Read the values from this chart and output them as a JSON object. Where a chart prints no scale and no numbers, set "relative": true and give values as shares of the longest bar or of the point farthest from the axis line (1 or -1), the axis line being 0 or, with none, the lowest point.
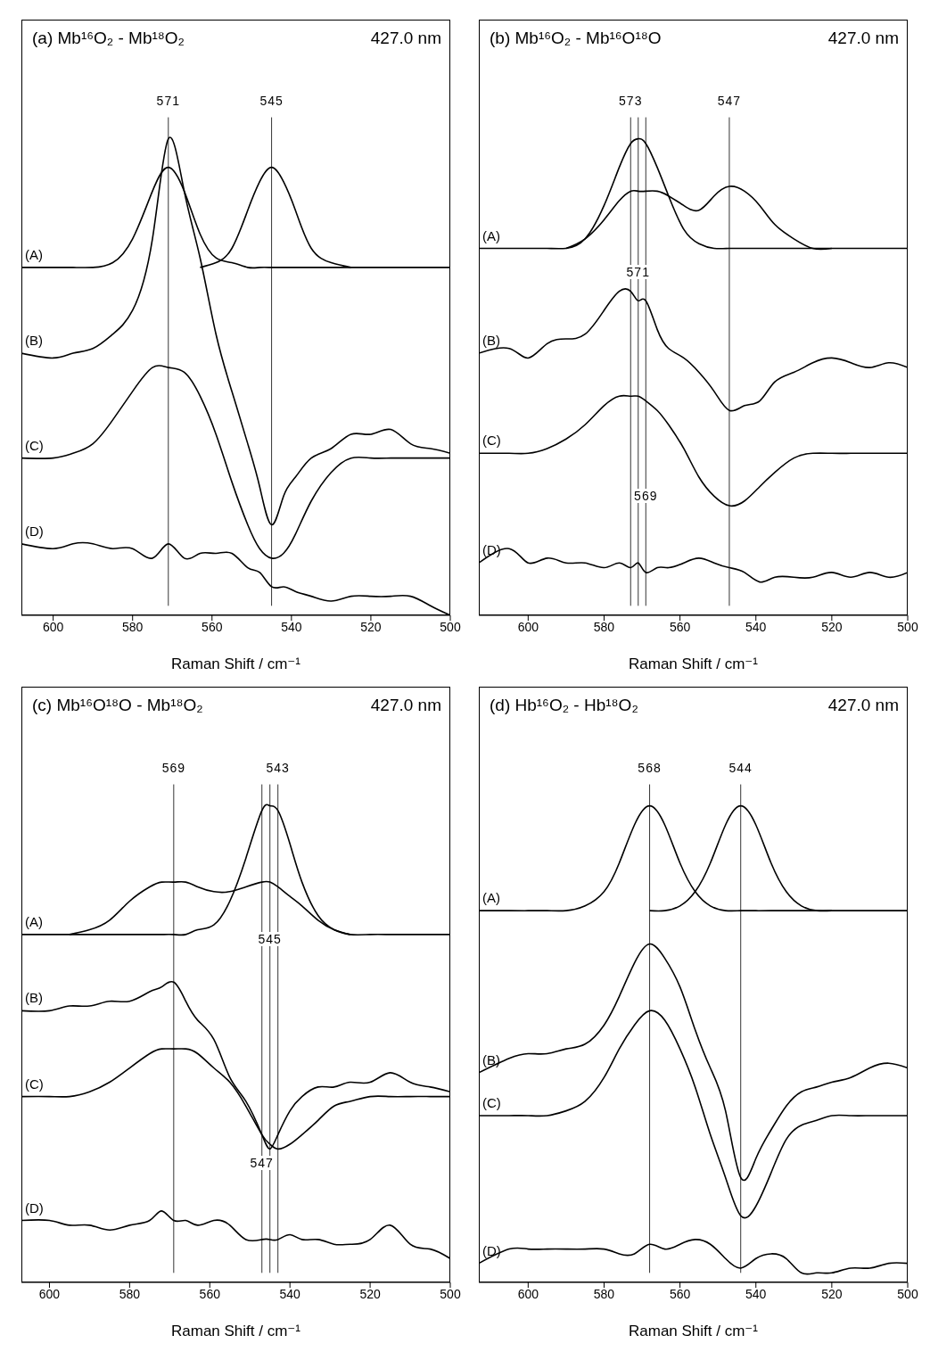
{
  "chart_data": [
    {
      "type": "line",
      "title": "(a) Mb¹⁶O₂ - Mb¹⁸O₂",
      "xlabel": "Raman Shift / cm⁻¹",
      "annotations": [
        "427.0 nm"
      ],
      "relative": true,
      "xlim": [
        608,
        500
      ],
      "xticks": [
        600,
        580,
        560,
        540,
        520,
        500
      ],
      "x": [
        608,
        600,
        595,
        590,
        585,
        580,
        575,
        571,
        567,
        563,
        559,
        555,
        551,
        548,
        545,
        542,
        539,
        535,
        530,
        525,
        520,
        515,
        510,
        505,
        500
      ],
      "ref_lines": [
        {
          "axis": "x",
          "value": 571,
          "label": "571"
        },
        {
          "axis": "x",
          "value": 545,
          "label": "545"
        }
      ],
      "series": [
        {
          "name": "(A)",
          "color": "#000000",
          "values": [
            0.73,
            0.73,
            0.73,
            0.73,
            0.74,
            0.79,
            0.89,
            0.94,
            0.89,
            0.8,
            0.75,
            0.74,
            0.73,
            0.73,
            0.73,
            0.73,
            0.73,
            0.73,
            0.73,
            0.73,
            0.73,
            0.73,
            0.73,
            0.73,
            0.73
          ]
        },
        {
          "color": "#000000",
          "values": [
            null,
            null,
            null,
            null,
            null,
            null,
            null,
            null,
            null,
            0.73,
            0.74,
            0.77,
            0.85,
            0.91,
            0.94,
            0.91,
            0.85,
            0.77,
            0.74,
            0.73,
            null,
            null,
            null,
            null,
            null
          ]
        },
        {
          "name": "(B)",
          "color": "#000000",
          "values": [
            0.55,
            0.54,
            0.55,
            0.56,
            0.59,
            0.64,
            0.79,
            1.0,
            0.89,
            0.75,
            0.59,
            0.47,
            0.36,
            0.27,
            0.19,
            0.25,
            0.29,
            0.33,
            0.35,
            0.38,
            0.38,
            0.39,
            0.36,
            0.35,
            0.34
          ]
        },
        {
          "name": "(C)",
          "color": "#000000",
          "values": [
            0.33,
            0.33,
            0.34,
            0.36,
            0.41,
            0.47,
            0.52,
            0.52,
            0.51,
            0.46,
            0.38,
            0.28,
            0.19,
            0.14,
            0.12,
            0.13,
            0.17,
            0.24,
            0.3,
            0.33,
            0.33,
            0.33,
            0.33,
            0.33,
            0.33
          ]
        },
        {
          "name": "(D)",
          "color": "#000000",
          "values": [
            0.15,
            0.14,
            0.15,
            0.15,
            0.14,
            0.14,
            0.12,
            0.15,
            0.12,
            0.13,
            0.13,
            0.13,
            0.1,
            0.09,
            0.06,
            0.06,
            0.05,
            0.04,
            0.03,
            0.04,
            0.04,
            0.04,
            0.04,
            0.02,
            0.0
          ]
        }
      ]
    },
    {
      "type": "line",
      "title": "(b) Mb¹⁶O₂ - Mb¹⁶O¹⁸O",
      "xlabel": "Raman Shift / cm⁻¹",
      "annotations": [
        "427.0 nm"
      ],
      "relative": true,
      "xlim": [
        613,
        500
      ],
      "xticks": [
        600,
        580,
        560,
        540,
        520,
        500
      ],
      "x": [
        613,
        605,
        600,
        595,
        590,
        585,
        580,
        576,
        573,
        571,
        569,
        566,
        563,
        559,
        555,
        551,
        547,
        543,
        539,
        535,
        530,
        525,
        520,
        515,
        510,
        505,
        500
      ],
      "ref_lines": [
        {
          "axis": "x",
          "value": 573,
          "label": "573"
        },
        {
          "axis": "x",
          "value": 571,
          "label": "571"
        },
        {
          "axis": "x",
          "value": 569,
          "label": "569"
        },
        {
          "axis": "x",
          "value": 547,
          "label": "547"
        }
      ],
      "series": [
        {
          "name": "(A)",
          "color": "#000000",
          "values": [
            0.77,
            0.77,
            0.77,
            0.77,
            0.77,
            0.79,
            0.86,
            0.94,
            0.99,
            1.0,
            0.99,
            0.94,
            0.88,
            0.81,
            0.78,
            0.77,
            0.77,
            0.77,
            0.77,
            0.77,
            0.77,
            0.77,
            0.77,
            0.77,
            0.77,
            0.77,
            0.77
          ]
        },
        {
          "color": "#000000",
          "values": [
            null,
            null,
            null,
            null,
            0.77,
            0.79,
            0.83,
            0.87,
            0.89,
            0.89,
            0.89,
            0.89,
            0.88,
            0.86,
            0.85,
            0.88,
            0.9,
            0.89,
            0.86,
            0.82,
            0.79,
            0.77,
            0.77,
            null,
            null,
            null,
            null
          ]
        },
        {
          "name": "(B)",
          "color": "#000000",
          "values": [
            0.55,
            0.56,
            0.54,
            0.57,
            0.58,
            0.59,
            0.64,
            0.68,
            0.68,
            0.66,
            0.66,
            0.6,
            0.56,
            0.54,
            0.51,
            0.47,
            0.43,
            0.44,
            0.45,
            0.49,
            0.51,
            0.53,
            0.54,
            0.53,
            0.52,
            0.53,
            0.52
          ]
        },
        {
          "name": "(C)",
          "color": "#000000",
          "values": [
            0.34,
            0.34,
            0.34,
            0.35,
            0.37,
            0.4,
            0.44,
            0.46,
            0.46,
            0.46,
            0.45,
            0.43,
            0.4,
            0.35,
            0.29,
            0.25,
            0.23,
            0.24,
            0.27,
            0.3,
            0.33,
            0.34,
            0.34,
            0.34,
            0.34,
            0.34,
            0.34
          ]
        },
        {
          "name": "(D)",
          "color": "#000000",
          "values": [
            0.11,
            0.14,
            0.11,
            0.12,
            0.11,
            0.11,
            0.1,
            0.11,
            0.1,
            0.11,
            0.09,
            0.1,
            0.1,
            0.11,
            0.12,
            0.11,
            0.1,
            0.09,
            0.07,
            0.08,
            0.08,
            0.08,
            0.09,
            0.08,
            0.09,
            0.08,
            0.09
          ]
        }
      ]
    },
    {
      "type": "line",
      "title": "(c) Mb¹⁶O¹⁸O - Mb¹⁸O₂",
      "xlabel": "Raman Shift / cm⁻¹",
      "annotations": [
        "427.0 nm"
      ],
      "relative": true,
      "xlim": [
        607,
        500
      ],
      "xticks": [
        600,
        580,
        560,
        540,
        520,
        500
      ],
      "x": [
        607,
        600,
        595,
        590,
        585,
        580,
        575,
        572,
        569,
        566,
        563,
        559,
        555,
        551,
        547,
        545,
        543,
        540,
        537,
        533,
        529,
        525,
        520,
        515,
        510,
        505,
        500
      ],
      "ref_lines": [
        {
          "axis": "x",
          "value": 569,
          "label": "569"
        },
        {
          "axis": "x",
          "value": 543,
          "label": "543"
        },
        {
          "axis": "x",
          "value": 545,
          "label": "545"
        },
        {
          "axis": "x",
          "value": 547,
          "label": "547"
        }
      ],
      "series": [
        {
          "name": "(A)",
          "color": "#000000",
          "values": [
            0.73,
            0.73,
            0.73,
            0.73,
            0.73,
            0.73,
            0.73,
            0.73,
            0.73,
            0.73,
            0.74,
            0.75,
            0.8,
            0.89,
            0.99,
            1.0,
            0.99,
            0.92,
            0.84,
            0.77,
            0.74,
            0.73,
            0.73,
            0.73,
            0.73,
            0.73,
            0.73
          ]
        },
        {
          "color": "#000000",
          "values": [
            null,
            null,
            0.73,
            0.74,
            0.76,
            0.8,
            0.83,
            0.84,
            0.84,
            0.84,
            0.83,
            0.82,
            0.82,
            0.83,
            0.84,
            0.84,
            0.83,
            0.81,
            0.79,
            0.76,
            0.74,
            0.73,
            null,
            null,
            null,
            null,
            null
          ]
        },
        {
          "name": "(B)",
          "color": "#000000",
          "values": [
            0.57,
            0.57,
            0.58,
            0.58,
            0.59,
            0.59,
            0.61,
            0.62,
            0.63,
            0.59,
            0.55,
            0.51,
            0.43,
            0.38,
            0.31,
            0.28,
            0.31,
            0.36,
            0.39,
            0.41,
            0.41,
            0.42,
            0.42,
            0.44,
            0.42,
            0.41,
            0.4
          ]
        },
        {
          "name": "(C)",
          "color": "#000000",
          "values": [
            0.39,
            0.39,
            0.39,
            0.4,
            0.42,
            0.45,
            0.48,
            0.49,
            0.49,
            0.49,
            0.48,
            0.45,
            0.42,
            0.37,
            0.31,
            0.29,
            0.28,
            0.29,
            0.31,
            0.34,
            0.37,
            0.38,
            0.39,
            0.39,
            0.39,
            0.39,
            0.39
          ]
        },
        {
          "name": "(D)",
          "color": "#000000",
          "values": [
            0.13,
            0.13,
            0.12,
            0.12,
            0.11,
            0.12,
            0.13,
            0.15,
            0.13,
            0.13,
            0.12,
            0.13,
            0.12,
            0.09,
            0.09,
            0.09,
            0.09,
            0.1,
            0.09,
            0.09,
            0.08,
            0.08,
            0.09,
            0.12,
            0.08,
            0.07,
            0.05
          ]
        }
      ]
    },
    {
      "type": "line",
      "title": "(d) Hb¹⁶O₂ - Hb¹⁸O₂",
      "xlabel": "Raman Shift / cm⁻¹",
      "annotations": [
        "427.0 nm"
      ],
      "relative": true,
      "xlim": [
        613,
        500
      ],
      "xticks": [
        600,
        580,
        560,
        540,
        520,
        500
      ],
      "x": [
        613,
        605,
        600,
        595,
        590,
        585,
        580,
        576,
        572,
        568,
        564,
        560,
        556,
        552,
        548,
        544,
        540,
        536,
        532,
        528,
        524,
        520,
        515,
        510,
        505,
        500
      ],
      "ref_lines": [
        {
          "axis": "x",
          "value": 568,
          "label": "568"
        },
        {
          "axis": "x",
          "value": 544,
          "label": "544"
        }
      ],
      "series": [
        {
          "name": "(A)",
          "color": "#000000",
          "values": [
            0.78,
            0.78,
            0.78,
            0.78,
            0.78,
            0.79,
            0.82,
            0.88,
            0.96,
            1.0,
            0.96,
            0.88,
            0.82,
            0.79,
            0.78,
            0.78,
            0.78,
            0.78,
            0.78,
            0.78,
            0.78,
            0.78,
            0.78,
            0.78,
            0.78,
            0.78
          ]
        },
        {
          "color": "#000000",
          "values": [
            null,
            null,
            null,
            null,
            null,
            null,
            null,
            null,
            null,
            0.78,
            0.78,
            0.79,
            0.82,
            0.88,
            0.96,
            1.0,
            0.96,
            0.88,
            0.82,
            0.79,
            0.78,
            0.78,
            null,
            null,
            null,
            null
          ]
        },
        {
          "name": "(B)",
          "color": "#000000",
          "values": [
            0.44,
            0.47,
            0.48,
            0.48,
            0.49,
            0.5,
            0.54,
            0.6,
            0.67,
            0.71,
            0.68,
            0.62,
            0.53,
            0.45,
            0.36,
            0.22,
            0.26,
            0.32,
            0.37,
            0.4,
            0.41,
            0.42,
            0.43,
            0.45,
            0.46,
            0.45
          ]
        },
        {
          "name": "(C)",
          "color": "#000000",
          "values": [
            0.35,
            0.35,
            0.35,
            0.35,
            0.36,
            0.38,
            0.43,
            0.49,
            0.54,
            0.57,
            0.55,
            0.49,
            0.41,
            0.31,
            0.22,
            0.14,
            0.16,
            0.23,
            0.3,
            0.33,
            0.34,
            0.35,
            0.35,
            0.35,
            0.35,
            0.35
          ]
        },
        {
          "name": "(D)",
          "color": "#000000",
          "values": [
            0.04,
            0.07,
            0.07,
            0.07,
            0.07,
            0.07,
            0.07,
            0.06,
            0.06,
            0.08,
            0.07,
            0.08,
            0.09,
            0.08,
            0.05,
            0.03,
            0.05,
            0.06,
            0.05,
            0.02,
            0.02,
            0.02,
            0.03,
            0.03,
            0.04,
            0.04
          ]
        }
      ]
    }
  ]
}
